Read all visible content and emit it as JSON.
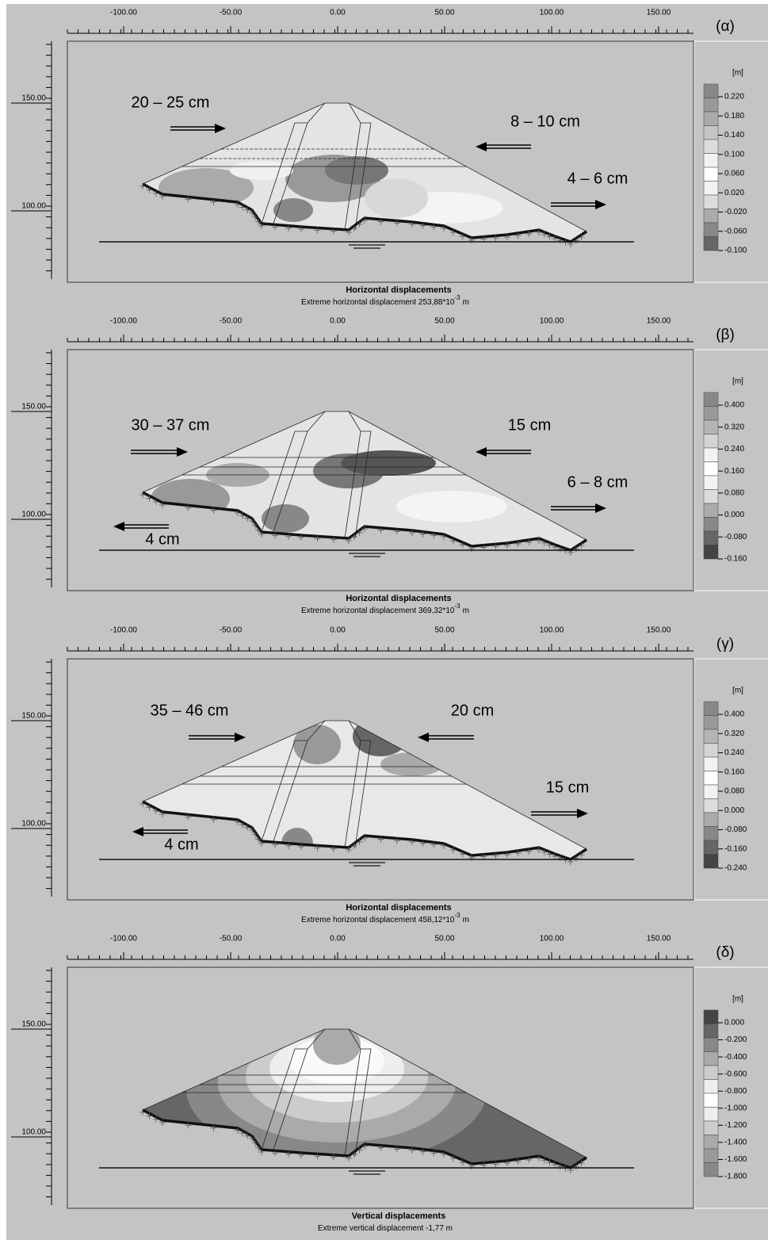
{
  "panels": [
    {
      "label": "(α)",
      "x_ticks": [
        "-100.00",
        "-50.00",
        "0.00",
        "50.00",
        "100.00",
        "150.00"
      ],
      "y_ticks": [
        "150.00",
        "100.00"
      ],
      "legend": {
        "unit": "[m]",
        "labels": [
          "0.220",
          "0.180",
          "0.140",
          "0.100",
          "0.060",
          "0.020",
          "-0.020",
          "-0.060",
          "-0.100"
        ]
      },
      "annotations": [
        "20 – 25 cm",
        "8 – 10 cm",
        "4 – 6 cm"
      ],
      "title": "Horizontal displacements",
      "subtitle": {
        "text": "Extreme horizontal displacement 253,88*10",
        "exponent": "-3",
        "unit": "m"
      }
    },
    {
      "label": "(β)",
      "x_ticks": [
        "-100.00",
        "-50.00",
        "0.00",
        "50.00",
        "100.00",
        "150.00"
      ],
      "y_ticks": [
        "150.00",
        "100.00"
      ],
      "legend": {
        "unit": "[m]",
        "labels": [
          "0.400",
          "0.320",
          "0.240",
          "0.160",
          "0.080",
          "0.000",
          "-0.080",
          "-0.160"
        ]
      },
      "annotations": [
        "30 – 37 cm",
        "15 cm",
        "6 – 8 cm",
        "4 cm"
      ],
      "title": "Horizontal displacements",
      "subtitle": {
        "text": "Extreme horizontal displacement 369,32*10",
        "exponent": "-3",
        "unit": "m"
      }
    },
    {
      "label": "(γ)",
      "x_ticks": [
        "-100.00",
        "-50.00",
        "0.00",
        "50.00",
        "100.00",
        "150.00"
      ],
      "y_ticks": [
        "150.00",
        "100.00"
      ],
      "legend": {
        "unit": "[m]",
        "labels": [
          "0.400",
          "0.320",
          "0.240",
          "0.160",
          "0.080",
          "0.000",
          "-0.080",
          "-0.160",
          "-0.240"
        ]
      },
      "annotations": [
        "35 – 46 cm",
        "20 cm",
        "15 cm",
        "4 cm"
      ],
      "title": "Horizontal displacements",
      "subtitle": {
        "text": "Extreme horizontal displacement 458,12*10",
        "exponent": "-3",
        "unit": "m"
      }
    },
    {
      "label": "(δ)",
      "x_ticks": [
        "-100.00",
        "-50.00",
        "0.00",
        "50.00",
        "100.00",
        "150.00"
      ],
      "y_ticks": [
        "150.00",
        "100.00"
      ],
      "legend": {
        "unit": "[m]",
        "labels": [
          "0.000",
          "-0.200",
          "-0.400",
          "-0.600",
          "-0.800",
          "-1.000",
          "-1.200",
          "-1.400",
          "-1.600",
          "-1.800"
        ]
      },
      "annotations": [],
      "title": "Vertical displacements",
      "subtitle": {
        "text": "Extreme vertical displacement -1,77 m"
      }
    }
  ]
}
